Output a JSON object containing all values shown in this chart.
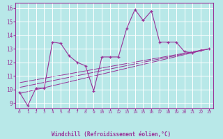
{
  "xlabel": "Windchill (Refroidissement éolien,°C)",
  "background_color": "#b8e8e8",
  "line_color": "#993399",
  "grid_color": "#ffffff",
  "xlim": [
    -0.5,
    23.5
  ],
  "ylim": [
    8.6,
    16.4
  ],
  "xticks": [
    0,
    1,
    2,
    3,
    4,
    5,
    6,
    7,
    8,
    9,
    10,
    11,
    12,
    13,
    14,
    15,
    16,
    17,
    18,
    19,
    20,
    21,
    22,
    23
  ],
  "yticks": [
    9,
    10,
    11,
    12,
    13,
    14,
    15,
    16
  ],
  "main_x": [
    0,
    1,
    2,
    3,
    4,
    5,
    6,
    7,
    8,
    9,
    10,
    11,
    12,
    13,
    14,
    15,
    16,
    17,
    18,
    19,
    20,
    21,
    22,
    23
  ],
  "main_y": [
    9.8,
    8.8,
    10.1,
    10.1,
    13.5,
    13.4,
    12.5,
    12.0,
    11.75,
    9.9,
    12.4,
    12.4,
    12.4,
    14.5,
    15.9,
    15.1,
    15.8,
    13.5,
    13.5,
    13.5,
    12.8,
    12.7,
    12.9,
    13.0
  ],
  "line1_x": [
    0,
    23
  ],
  "line1_y": [
    10.15,
    13.0
  ],
  "line2_x": [
    0,
    23
  ],
  "line2_y": [
    10.5,
    13.0
  ],
  "line3_x": [
    0,
    23
  ],
  "line3_y": [
    9.7,
    13.0
  ]
}
